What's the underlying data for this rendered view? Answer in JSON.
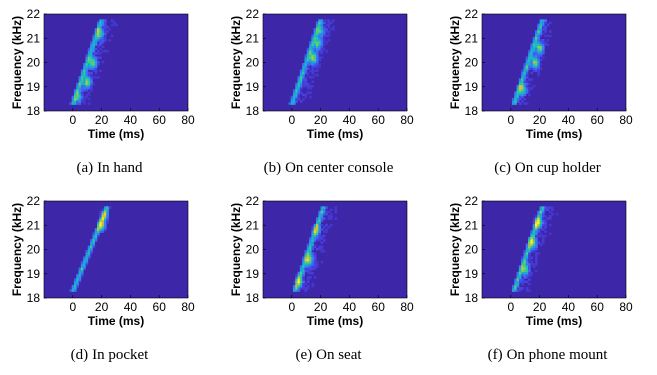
{
  "figure": {
    "panels": [
      {
        "tag": "(a)",
        "caption": "In hand",
        "chart_data": {
          "type": "heatmap",
          "title": "",
          "xlabel": "Time (ms)",
          "ylabel": "Frequency (kHz)",
          "xlim": [
            -20,
            80
          ],
          "ylim": [
            18,
            22
          ],
          "xticks": [
            "0",
            "20",
            "40",
            "60",
            "80"
          ],
          "yticks": [
            "18",
            "19",
            "20",
            "21",
            "22"
          ],
          "colormap": "parula",
          "background_color": "#3d26a8",
          "sweep": {
            "t_start_ms": 0,
            "f_start_khz": 18.3,
            "t_end_ms": 20,
            "f_end_khz": 21.8
          },
          "echo_tail_ms": 20,
          "hotspots": [
            {
              "t": 10,
              "f": 19.2,
              "level": 1.0
            },
            {
              "t": 14,
              "f": 20.0,
              "level": 0.9
            },
            {
              "t": 19,
              "f": 21.2,
              "level": 0.75
            },
            {
              "t": 4,
              "f": 18.6,
              "level": 0.6
            }
          ]
        }
      },
      {
        "tag": "(b)",
        "caption": "On center console",
        "chart_data": {
          "type": "heatmap",
          "title": "",
          "xlabel": "Time (ms)",
          "ylabel": "Frequency (kHz)",
          "xlim": [
            -20,
            80
          ],
          "ylim": [
            18,
            22
          ],
          "xticks": [
            "0",
            "20",
            "40",
            "60",
            "80"
          ],
          "yticks": [
            "18",
            "19",
            "20",
            "21",
            "22"
          ],
          "colormap": "parula",
          "background_color": "#3d26a8",
          "sweep": {
            "t_start_ms": 0,
            "f_start_khz": 18.3,
            "t_end_ms": 20,
            "f_end_khz": 21.8
          },
          "echo_tail_ms": 20,
          "hotspots": [
            {
              "t": 15,
              "f": 20.2,
              "level": 1.0
            },
            {
              "t": 18,
              "f": 20.8,
              "level": 0.85
            },
            {
              "t": 20,
              "f": 21.3,
              "level": 0.6
            }
          ]
        }
      },
      {
        "tag": "(c)",
        "caption": "On cup holder",
        "chart_data": {
          "type": "heatmap",
          "title": "",
          "xlabel": "Time (ms)",
          "ylabel": "Frequency (kHz)",
          "xlim": [
            -20,
            80
          ],
          "ylim": [
            18,
            22
          ],
          "xticks": [
            "0",
            "20",
            "40",
            "60",
            "80"
          ],
          "yticks": [
            "18",
            "19",
            "20",
            "21",
            "22"
          ],
          "colormap": "parula",
          "background_color": "#3d26a8",
          "sweep": {
            "t_start_ms": 2,
            "f_start_khz": 18.3,
            "t_end_ms": 22,
            "f_end_khz": 21.8
          },
          "echo_tail_ms": 18,
          "hotspots": [
            {
              "t": 8,
              "f": 18.9,
              "level": 0.9
            },
            {
              "t": 17,
              "f": 20.0,
              "level": 1.0
            },
            {
              "t": 20,
              "f": 20.6,
              "level": 0.95
            }
          ]
        }
      },
      {
        "tag": "(d)",
        "caption": "In pocket",
        "chart_data": {
          "type": "heatmap",
          "title": "",
          "xlabel": "Time (ms)",
          "ylabel": "Frequency (kHz)",
          "xlim": [
            -20,
            80
          ],
          "ylim": [
            18,
            22
          ],
          "xticks": [
            "0",
            "20",
            "40",
            "60",
            "80"
          ],
          "yticks": [
            "18",
            "19",
            "20",
            "21",
            "22"
          ],
          "colormap": "parula",
          "background_color": "#3d26a8",
          "sweep": {
            "t_start_ms": 0,
            "f_start_khz": 18.3,
            "t_end_ms": 24,
            "f_end_khz": 21.8
          },
          "echo_tail_ms": 2,
          "hotspots": [
            {
              "t": 20,
              "f": 21.0,
              "level": 1.0
            },
            {
              "t": 22,
              "f": 21.4,
              "level": 0.7
            }
          ]
        }
      },
      {
        "tag": "(e)",
        "caption": "On seat",
        "chart_data": {
          "type": "heatmap",
          "title": "",
          "xlabel": "Time (ms)",
          "ylabel": "Frequency (kHz)",
          "xlim": [
            -20,
            80
          ],
          "ylim": [
            18,
            22
          ],
          "xticks": [
            "0",
            "20",
            "40",
            "60",
            "80"
          ],
          "yticks": [
            "18",
            "19",
            "20",
            "21",
            "22"
          ],
          "colormap": "parula",
          "background_color": "#3d26a8",
          "sweep": {
            "t_start_ms": 2,
            "f_start_khz": 18.3,
            "t_end_ms": 22,
            "f_end_khz": 21.8
          },
          "echo_tail_ms": 20,
          "hotspots": [
            {
              "t": 5,
              "f": 18.7,
              "level": 0.8
            },
            {
              "t": 12,
              "f": 19.6,
              "level": 1.0
            },
            {
              "t": 17,
              "f": 20.8,
              "level": 0.7
            }
          ]
        }
      },
      {
        "tag": "(f)",
        "caption": "On phone mount",
        "chart_data": {
          "type": "heatmap",
          "title": "",
          "xlabel": "Time (ms)",
          "ylabel": "Frequency (kHz)",
          "xlim": [
            -20,
            80
          ],
          "ylim": [
            18,
            22
          ],
          "xticks": [
            "0",
            "20",
            "40",
            "60",
            "80"
          ],
          "yticks": [
            "18",
            "19",
            "20",
            "21",
            "22"
          ],
          "colormap": "parula",
          "background_color": "#3d26a8",
          "sweep": {
            "t_start_ms": 2,
            "f_start_khz": 18.3,
            "t_end_ms": 22,
            "f_end_khz": 21.8
          },
          "echo_tail_ms": 20,
          "hotspots": [
            {
              "t": 10,
              "f": 19.2,
              "level": 0.85
            },
            {
              "t": 15,
              "f": 20.3,
              "level": 0.95
            },
            {
              "t": 19,
              "f": 21.1,
              "level": 1.0
            }
          ]
        }
      }
    ]
  }
}
